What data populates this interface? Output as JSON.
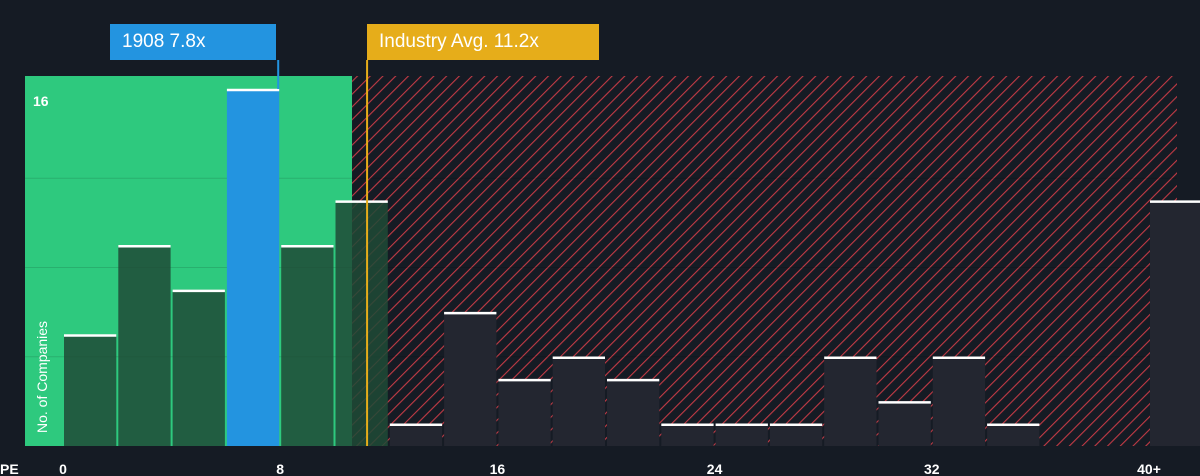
{
  "chart_data": {
    "type": "bar",
    "x_axis_label": "PE",
    "ylabel": "No. of Companies",
    "x_ticks": [
      "0",
      "8",
      "16",
      "24",
      "32",
      "40+"
    ],
    "y_ticks": [
      "16"
    ],
    "ylim": [
      0,
      16
    ],
    "bins": [
      {
        "from": 0,
        "to": 2,
        "count": 5
      },
      {
        "from": 2,
        "to": 4,
        "count": 9
      },
      {
        "from": 4,
        "to": 6,
        "count": 7
      },
      {
        "from": 6,
        "to": 8,
        "count": 16
      },
      {
        "from": 8,
        "to": 10,
        "count": 9
      },
      {
        "from": 10,
        "to": 12,
        "count": 11
      },
      {
        "from": 12,
        "to": 14,
        "count": 1
      },
      {
        "from": 14,
        "to": 16,
        "count": 6
      },
      {
        "from": 16,
        "to": 18,
        "count": 3
      },
      {
        "from": 18,
        "to": 20,
        "count": 4
      },
      {
        "from": 20,
        "to": 22,
        "count": 3
      },
      {
        "from": 22,
        "to": 24,
        "count": 1
      },
      {
        "from": 24,
        "to": 26,
        "count": 1
      },
      {
        "from": 26,
        "to": 28,
        "count": 1
      },
      {
        "from": 28,
        "to": 30,
        "count": 4
      },
      {
        "from": 30,
        "to": 32,
        "count": 2
      },
      {
        "from": 32,
        "to": 34,
        "count": 4
      },
      {
        "from": 34,
        "to": 36,
        "count": 1
      },
      {
        "from": 36,
        "to": 38,
        "count": 0
      },
      {
        "from": 38,
        "to": 40,
        "count": 0
      },
      {
        "from": 40,
        "to": 42,
        "count": 11
      }
    ],
    "company": {
      "label": "1908 7.8x",
      "pe": 7.8,
      "highlight_bin_index": 3
    },
    "industry_avg": {
      "label": "Industry Avg. 11.2x",
      "pe": 11.2
    },
    "colors": {
      "background": "#151b24",
      "undervalued_zone": "#2ec97e",
      "overvalued_hatch": "#c23a45",
      "bar_green": "#1f4a36",
      "bar_dark": "#232630",
      "company_bar": "#2394e0",
      "industry_line": "#e6ad1a",
      "bar_top": "#ffffff"
    }
  }
}
